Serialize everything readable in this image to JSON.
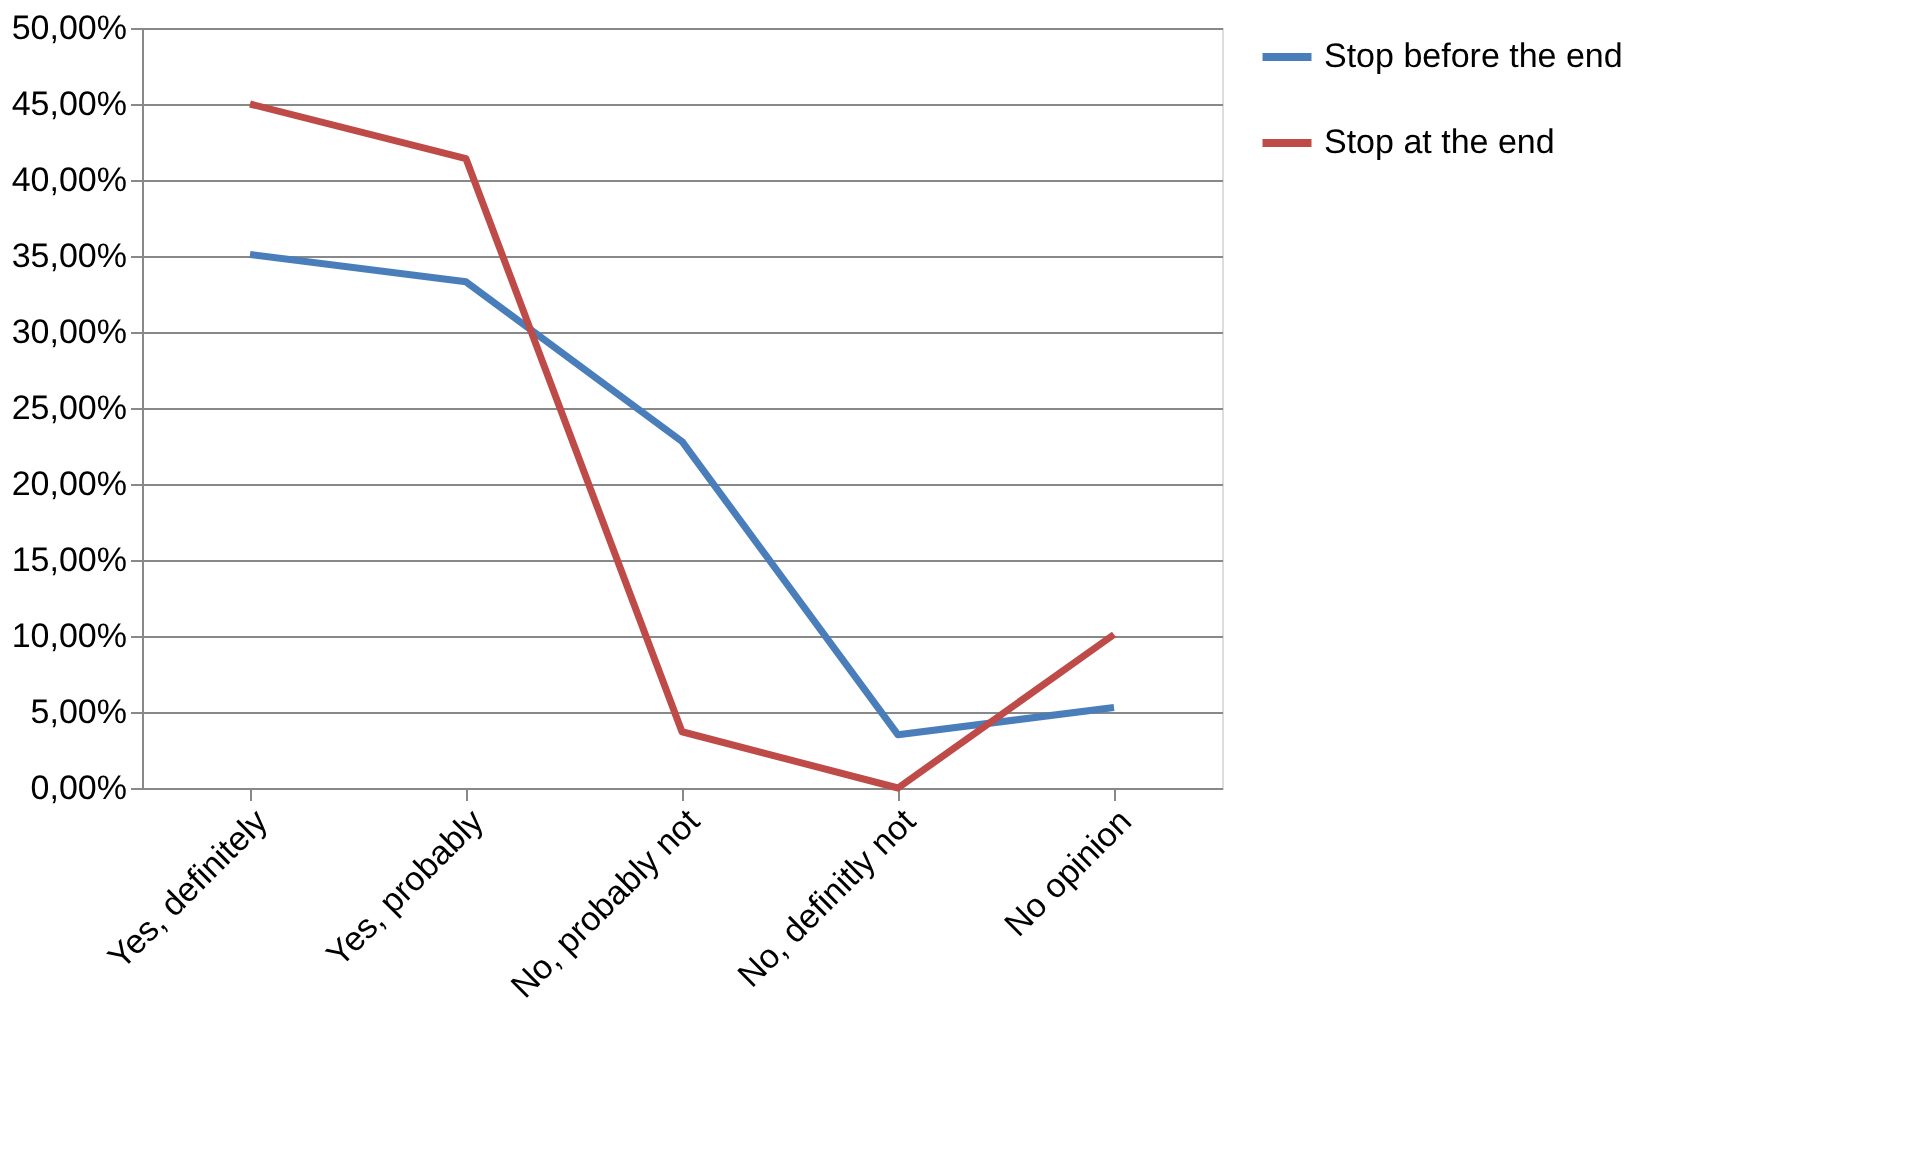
{
  "chart_data": {
    "type": "line",
    "categories": [
      "Yes, definitely",
      "Yes, probably",
      "No, probably not",
      "No, definitly not",
      "No opinion"
    ],
    "series": [
      {
        "name": "Stop before the end",
        "color": "#4a7ebb",
        "values": [
          35.1,
          33.3,
          22.8,
          3.5,
          5.3
        ]
      },
      {
        "name": "Stop at the end",
        "color": "#be4b48",
        "values": [
          45.0,
          41.4,
          3.7,
          0.0,
          10.1
        ]
      }
    ],
    "ylim": [
      0,
      50
    ],
    "yticks": [
      {
        "value": 0,
        "label": "0,00%"
      },
      {
        "value": 5,
        "label": "5,00%"
      },
      {
        "value": 10,
        "label": "10,00%"
      },
      {
        "value": 15,
        "label": "15,00%"
      },
      {
        "value": 20,
        "label": "20,00%"
      },
      {
        "value": 25,
        "label": "25,00%"
      },
      {
        "value": 30,
        "label": "30,00%"
      },
      {
        "value": 35,
        "label": "35,00%"
      },
      {
        "value": 40,
        "label": "40,00%"
      },
      {
        "value": 45,
        "label": "45,00%"
      },
      {
        "value": 50,
        "label": "50,00%"
      }
    ],
    "grid": "y",
    "legend": "right",
    "marker": "none",
    "line_style": "solid"
  }
}
